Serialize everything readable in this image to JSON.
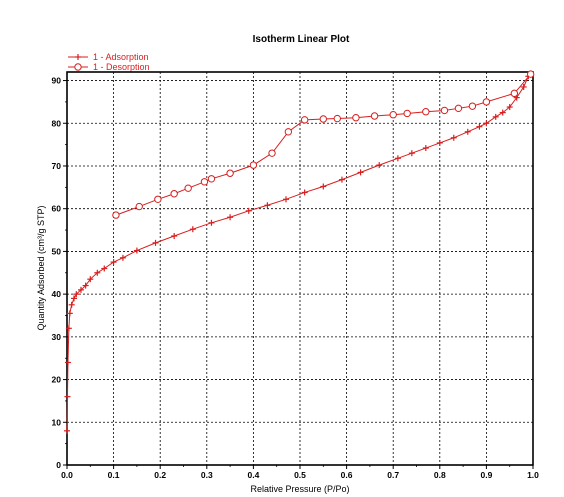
{
  "colors": {
    "series": "#d81e1e",
    "axis": "#000000",
    "grid": "#000000"
  },
  "chart_data": {
    "type": "line",
    "title": "Isotherm Linear Plot",
    "xlabel": "Relative Pressure (P/Po)",
    "ylabel": "Quantity Adsorbed (cm³/g STP)",
    "xlim": [
      0,
      1.0
    ],
    "ylim": [
      0,
      92
    ],
    "xticks": [
      "0.0",
      "0.1",
      "0.2",
      "0.3",
      "0.4",
      "0.5",
      "0.6",
      "0.7",
      "0.8",
      "0.9",
      "1.0"
    ],
    "yticks": [
      "0",
      "10",
      "20",
      "30",
      "40",
      "50",
      "60",
      "70",
      "80",
      "90"
    ],
    "grid": true,
    "legend_position": "top-left",
    "series": [
      {
        "name": "1 - Adsorption",
        "marker": "plus",
        "points": [
          [
            0.0,
            8
          ],
          [
            0.001,
            16
          ],
          [
            0.002,
            24
          ],
          [
            0.004,
            32
          ],
          [
            0.006,
            35.5
          ],
          [
            0.01,
            37.5
          ],
          [
            0.015,
            39
          ],
          [
            0.02,
            40
          ],
          [
            0.03,
            41
          ],
          [
            0.04,
            42
          ],
          [
            0.05,
            43.5
          ],
          [
            0.065,
            45
          ],
          [
            0.08,
            46
          ],
          [
            0.1,
            47.5
          ],
          [
            0.12,
            48.5
          ],
          [
            0.15,
            50.2
          ],
          [
            0.19,
            52
          ],
          [
            0.23,
            53.6
          ],
          [
            0.27,
            55.2
          ],
          [
            0.31,
            56.7
          ],
          [
            0.35,
            58
          ],
          [
            0.39,
            59.5
          ],
          [
            0.43,
            60.8
          ],
          [
            0.47,
            62.2
          ],
          [
            0.51,
            63.8
          ],
          [
            0.55,
            65.2
          ],
          [
            0.59,
            66.8
          ],
          [
            0.63,
            68.5
          ],
          [
            0.67,
            70.2
          ],
          [
            0.71,
            71.8
          ],
          [
            0.74,
            73
          ],
          [
            0.77,
            74.2
          ],
          [
            0.8,
            75.4
          ],
          [
            0.83,
            76.6
          ],
          [
            0.86,
            78
          ],
          [
            0.885,
            79.2
          ],
          [
            0.9,
            80
          ],
          [
            0.92,
            81.5
          ],
          [
            0.935,
            82.5
          ],
          [
            0.95,
            83.8
          ],
          [
            0.965,
            86
          ],
          [
            0.98,
            88.5
          ],
          [
            0.99,
            91
          ]
        ]
      },
      {
        "name": "1 - Desorption",
        "marker": "circle",
        "points": [
          [
            0.995,
            91.5
          ],
          [
            0.96,
            87
          ],
          [
            0.9,
            85
          ],
          [
            0.87,
            84
          ],
          [
            0.84,
            83.5
          ],
          [
            0.81,
            83
          ],
          [
            0.77,
            82.7
          ],
          [
            0.73,
            82.3
          ],
          [
            0.7,
            82
          ],
          [
            0.66,
            81.7
          ],
          [
            0.62,
            81.3
          ],
          [
            0.58,
            81.1
          ],
          [
            0.55,
            81
          ],
          [
            0.51,
            80.8
          ],
          [
            0.475,
            78
          ],
          [
            0.44,
            73
          ],
          [
            0.4,
            70.2
          ],
          [
            0.35,
            68.3
          ],
          [
            0.31,
            67
          ],
          [
            0.295,
            66.3
          ],
          [
            0.26,
            64.8
          ],
          [
            0.23,
            63.5
          ],
          [
            0.195,
            62.2
          ],
          [
            0.155,
            60.5
          ],
          [
            0.105,
            58.5
          ]
        ]
      }
    ]
  }
}
